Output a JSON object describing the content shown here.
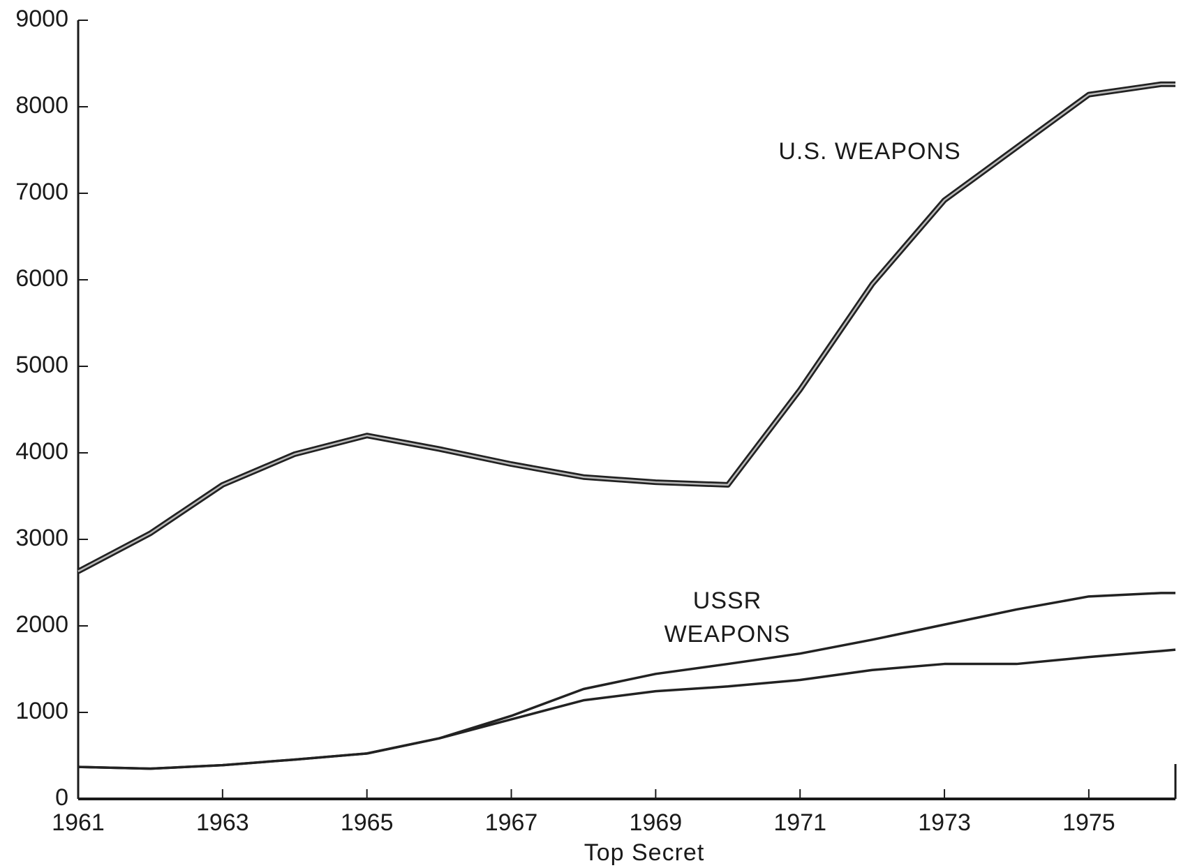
{
  "chart_data": {
    "type": "line",
    "footer": "Top Secret",
    "x": [
      1961,
      1962,
      1963,
      1964,
      1965,
      1966,
      1967,
      1968,
      1969,
      1970,
      1971,
      1972,
      1973,
      1974,
      1975,
      1976,
      1976.2
    ],
    "series": [
      {
        "name": "U.S. WEAPONS",
        "color": "#222222",
        "values": [
          2630,
          3070,
          3630,
          3985,
          4200,
          4045,
          3870,
          3720,
          3660,
          3630,
          4730,
          5950,
          6920,
          7530,
          8140,
          8260,
          8260
        ]
      },
      {
        "name": "USSR\nWEAPONS",
        "color": "#222222",
        "values": [
          370,
          350,
          390,
          455,
          525,
          700,
          960,
          1270,
          1445,
          1560,
          1680,
          1840,
          2015,
          2190,
          2340,
          2380,
          2380
        ],
        "low": [
          370,
          350,
          390,
          455,
          525,
          700,
          920,
          1140,
          1245,
          1300,
          1375,
          1490,
          1560,
          1560,
          1640,
          1710,
          1725
        ]
      }
    ],
    "xlim": [
      1961,
      1976.2
    ],
    "xticks": [
      1961,
      1963,
      1965,
      1967,
      1969,
      1971,
      1973,
      1975
    ],
    "ylim": [
      0,
      9000
    ],
    "yticks": [
      0,
      1000,
      2000,
      3000,
      4000,
      5000,
      6000,
      7000,
      8000,
      9000
    ],
    "grid": false
  }
}
